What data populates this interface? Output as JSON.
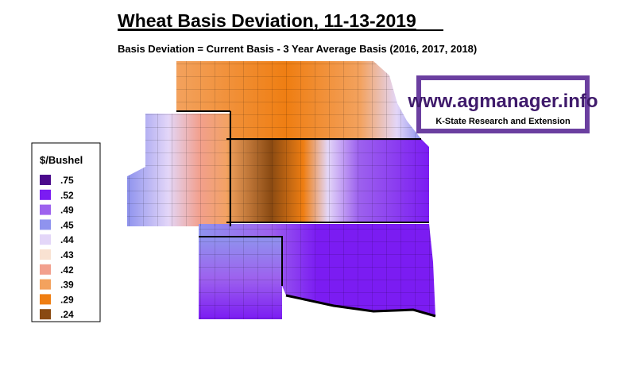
{
  "header": {
    "title": "Wheat Basis Deviation, 11-13-2019",
    "subtitle": "Basis Deviation = Current Basis - 3 Year Average Basis (2016, 2017, 2018)"
  },
  "logo": {
    "url": "www.agmanager.info",
    "org": "K-State Research and Extension"
  },
  "legend": {
    "title": "$/Bushel",
    "items": [
      {
        "label": ".75",
        "color": "#4b0a8c"
      },
      {
        "label": ".52",
        "color": "#7b1cf2"
      },
      {
        "label": ".49",
        "color": "#9d62ee"
      },
      {
        "label": ".45",
        "color": "#8f93ee"
      },
      {
        "label": ".44",
        "color": "#e3d6f8"
      },
      {
        "label": ".43",
        "color": "#f9e2d2"
      },
      {
        "label": ".42",
        "color": "#f2a08e"
      },
      {
        "label": ".39",
        "color": "#f3a25e"
      },
      {
        "label": ".29",
        "color": "#ef7e12"
      },
      {
        "label": ".24",
        "color": "#8a4a12"
      }
    ]
  }
}
